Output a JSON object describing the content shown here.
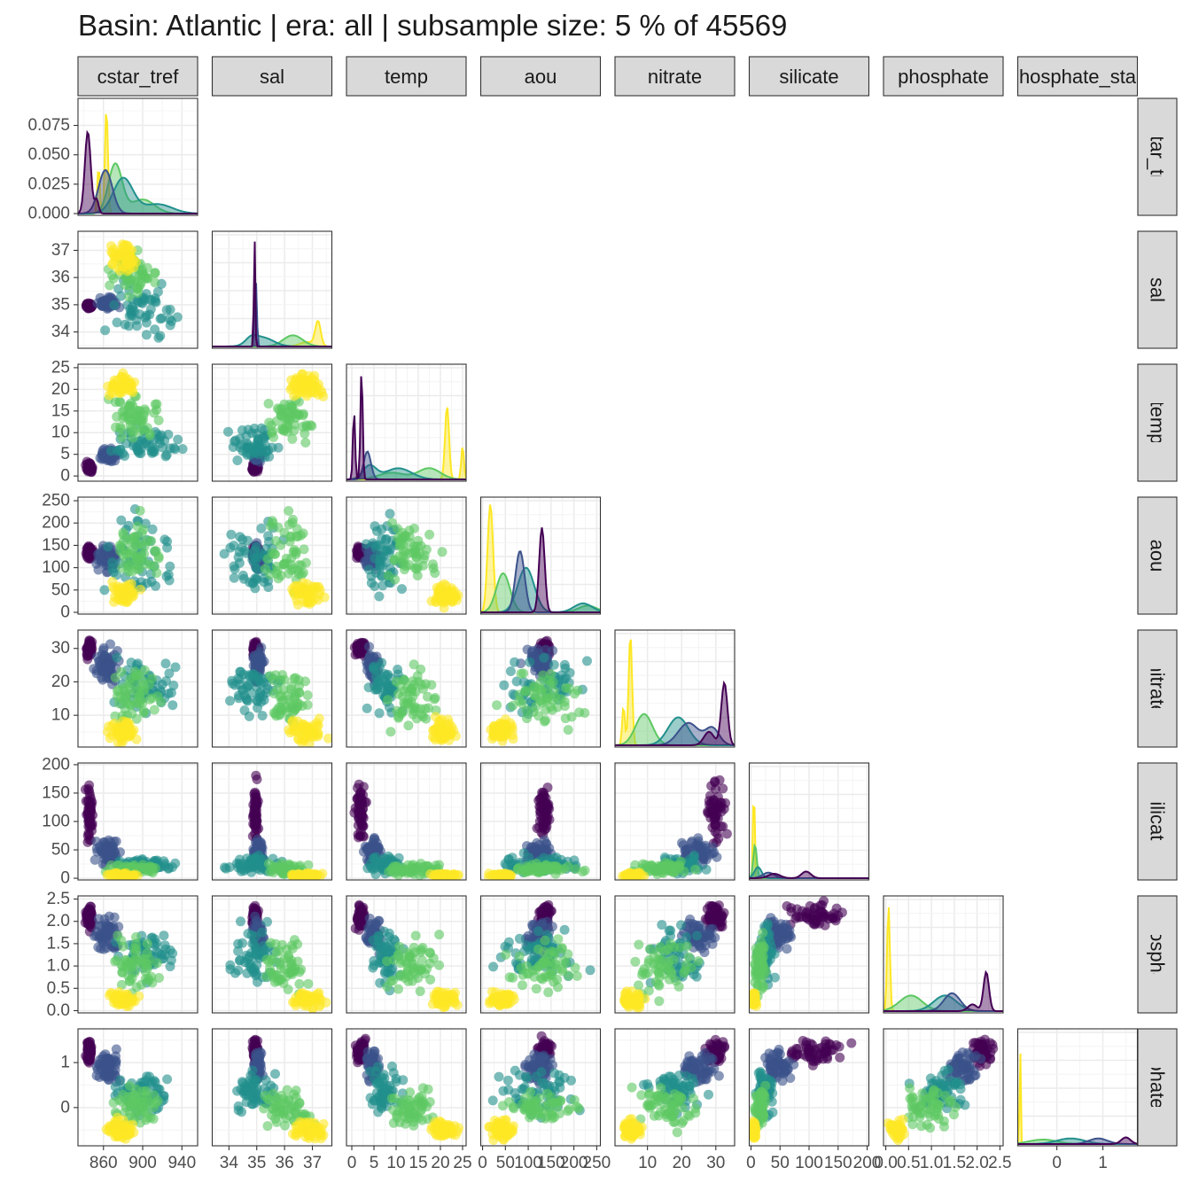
{
  "title": "Basin: Atlantic | era: all | subsample size: 5 % of 45569",
  "colors": {
    "panel_border": "#333333",
    "strip_fill": "#d9d9d9",
    "grid_major": "#ebebeb",
    "grid_minor": "#f4f4f4",
    "tick_text": "#4d4d4d",
    "palette": [
      "#440154",
      "#3b528b",
      "#21908c",
      "#5dc863",
      "#fde725"
    ]
  },
  "chart_data": {
    "type": "scatter",
    "layout": "pairs-lower-triangle",
    "variables": [
      {
        "name": "cstar_tref",
        "col_label": "cstar_tref",
        "row_label": "cstar_tref",
        "range": [
          834,
          956
        ],
        "x_ticks": [
          {
            "value": 860,
            "label": "860"
          },
          {
            "value": 900,
            "label": "900"
          },
          {
            "value": 940,
            "label": "940"
          }
        ],
        "y_ticks": [
          {
            "value": 0.0,
            "label": "0.000"
          },
          {
            "value": 0.025,
            "label": "0.025"
          },
          {
            "value": 0.05,
            "label": "0.050"
          },
          {
            "value": 0.075,
            "label": "0.075"
          }
        ],
        "density_max": 0.095
      },
      {
        "name": "sal",
        "col_label": "sal",
        "row_label": "sal",
        "range": [
          33.4,
          37.7
        ],
        "x_ticks": [
          {
            "value": 34,
            "label": "34"
          },
          {
            "value": 35,
            "label": "35"
          },
          {
            "value": 36,
            "label": "36"
          },
          {
            "value": 37,
            "label": "37"
          }
        ],
        "y_ticks": [
          {
            "value": 34,
            "label": "34"
          },
          {
            "value": 35,
            "label": "35"
          },
          {
            "value": 36,
            "label": "36"
          },
          {
            "value": 37,
            "label": "37"
          }
        ]
      },
      {
        "name": "temp",
        "col_label": "temp",
        "row_label": "temp",
        "range": [
          -1.2,
          25.8
        ],
        "x_ticks": [
          {
            "value": 0,
            "label": "0"
          },
          {
            "value": 5,
            "label": "5"
          },
          {
            "value": 10,
            "label": "10"
          },
          {
            "value": 15,
            "label": "15"
          },
          {
            "value": 20,
            "label": "20"
          },
          {
            "value": 25,
            "label": "25"
          }
        ],
        "y_ticks": [
          {
            "value": 0,
            "label": "0"
          },
          {
            "value": 5,
            "label": "5"
          },
          {
            "value": 10,
            "label": "10"
          },
          {
            "value": 15,
            "label": "15"
          },
          {
            "value": 20,
            "label": "20"
          },
          {
            "value": 25,
            "label": "25"
          }
        ]
      },
      {
        "name": "aou",
        "col_label": "aou",
        "row_label": "aou",
        "range": [
          -4,
          258
        ],
        "x_ticks": [
          {
            "value": 0,
            "label": "0"
          },
          {
            "value": 50,
            "label": "50"
          },
          {
            "value": 100,
            "label": "100"
          },
          {
            "value": 150,
            "label": "150"
          },
          {
            "value": 200,
            "label": "200"
          },
          {
            "value": 250,
            "label": "250"
          }
        ],
        "y_ticks": [
          {
            "value": 0,
            "label": "0"
          },
          {
            "value": 50,
            "label": "50"
          },
          {
            "value": 100,
            "label": "100"
          },
          {
            "value": 150,
            "label": "150"
          },
          {
            "value": 200,
            "label": "200"
          },
          {
            "value": 250,
            "label": "250"
          }
        ]
      },
      {
        "name": "nitrate",
        "col_label": "nitrate",
        "row_label": "nitrate",
        "range": [
          0.5,
          35.5
        ],
        "x_ticks": [
          {
            "value": 10,
            "label": "10"
          },
          {
            "value": 20,
            "label": "20"
          },
          {
            "value": 30,
            "label": "30"
          }
        ],
        "y_ticks": [
          {
            "value": 10,
            "label": "10"
          },
          {
            "value": 20,
            "label": "20"
          },
          {
            "value": 30,
            "label": "30"
          }
        ]
      },
      {
        "name": "silicate",
        "col_label": "silicate",
        "row_label": "silicate",
        "range": [
          -3,
          203
        ],
        "x_ticks": [
          {
            "value": 0,
            "label": "0"
          },
          {
            "value": 50,
            "label": "50"
          },
          {
            "value": 100,
            "label": "100"
          },
          {
            "value": 150,
            "label": "150"
          },
          {
            "value": 200,
            "label": "200"
          }
        ],
        "y_ticks": [
          {
            "value": 0,
            "label": "0"
          },
          {
            "value": 50,
            "label": "50"
          },
          {
            "value": 100,
            "label": "100"
          },
          {
            "value": 150,
            "label": "150"
          },
          {
            "value": 200,
            "label": "200"
          }
        ]
      },
      {
        "name": "phosphate",
        "col_label": "phosphate",
        "row_label": "phosphate",
        "range": [
          -0.05,
          2.57
        ],
        "x_ticks": [
          {
            "value": 0.0,
            "label": "0.0"
          },
          {
            "value": 0.5,
            "label": "0.5"
          },
          {
            "value": 1.0,
            "label": "1.0"
          },
          {
            "value": 1.5,
            "label": "1.5"
          },
          {
            "value": 2.0,
            "label": "2.0"
          },
          {
            "value": 2.5,
            "label": "2.5"
          }
        ],
        "y_ticks": [
          {
            "value": 0.0,
            "label": "0.0"
          },
          {
            "value": 0.5,
            "label": "0.5"
          },
          {
            "value": 1.0,
            "label": "1.0"
          },
          {
            "value": 1.5,
            "label": "1.5"
          },
          {
            "value": 2.0,
            "label": "2.0"
          },
          {
            "value": 2.5,
            "label": "2.5"
          }
        ]
      },
      {
        "name": "phosphate_star",
        "col_label": "hosphate_sta",
        "row_label": "hosphate_sta",
        "range": [
          -0.85,
          1.75
        ],
        "x_ticks": [
          {
            "value": 0,
            "label": "0"
          },
          {
            "value": 1,
            "label": "1"
          }
        ],
        "y_ticks": [
          {
            "value": 0,
            "label": "0"
          },
          {
            "value": 1,
            "label": "1"
          }
        ]
      }
    ],
    "groups": [
      {
        "color": "#440154",
        "cstar_tref": [
          841,
          850
        ],
        "sal": [
          34.8,
          35.1
        ],
        "temp": [
          0.5,
          3.5
        ],
        "aou": [
          115,
          155
        ],
        "nitrate": [
          26,
          34
        ],
        "silicate": [
          40,
          190
        ],
        "phosphate": [
          1.7,
          2.5
        ],
        "phosphate_star": [
          0.9,
          1.6
        ]
      },
      {
        "color": "#3b528b",
        "cstar_tref": [
          848,
          880
        ],
        "sal": [
          34.8,
          35.3
        ],
        "temp": [
          2.5,
          7.0
        ],
        "aou": [
          80,
          165
        ],
        "nitrate": [
          18,
          32
        ],
        "silicate": [
          15,
          80
        ],
        "phosphate": [
          1.2,
          2.2
        ],
        "phosphate_star": [
          0.4,
          1.4
        ]
      },
      {
        "color": "#21908c",
        "cstar_tref": [
          855,
          950
        ],
        "sal": [
          33.5,
          36.2
        ],
        "temp": [
          2.0,
          13.0
        ],
        "aou": [
          5,
          250
        ],
        "nitrate": [
          8,
          30
        ],
        "silicate": [
          4,
          45
        ],
        "phosphate": [
          0.4,
          2.1
        ],
        "phosphate_star": [
          -0.3,
          1.0
        ]
      },
      {
        "color": "#5dc863",
        "cstar_tref": [
          860,
          925
        ],
        "sal": [
          35.0,
          37.2
        ],
        "temp": [
          6.0,
          21.0
        ],
        "aou": [
          20,
          250
        ],
        "nitrate": [
          2,
          28
        ],
        "silicate": [
          2,
          30
        ],
        "phosphate": [
          0.1,
          1.9
        ],
        "phosphate_star": [
          -0.6,
          0.6
        ]
      },
      {
        "color": "#fde725",
        "cstar_tref": [
          858,
          900
        ],
        "sal": [
          36.0,
          37.6
        ],
        "temp": [
          17.0,
          25.0
        ],
        "aou": [
          5,
          80
        ],
        "nitrate": [
          1,
          10
        ],
        "silicate": [
          1,
          10
        ],
        "phosphate": [
          0.0,
          0.5
        ],
        "phosphate_star": [
          -0.8,
          -0.2
        ]
      }
    ],
    "densities": {
      "cstar_tref": [
        {
          "color": "#fde725",
          "peaks": [
            {
              "at": 863,
              "h": 0.09,
              "w": 1.5
            },
            {
              "at": 855,
              "h": 0.04,
              "w": 1.3
            }
          ]
        },
        {
          "color": "#5dc863",
          "peaks": [
            {
              "at": 872,
              "h": 0.042,
              "w": 7
            },
            {
              "at": 900,
              "h": 0.012,
              "w": 12
            }
          ]
        },
        {
          "color": "#21908c",
          "peaks": [
            {
              "at": 880,
              "h": 0.03,
              "w": 10
            },
            {
              "at": 915,
              "h": 0.008,
              "w": 15
            }
          ]
        },
        {
          "color": "#3b528b",
          "peaks": [
            {
              "at": 862,
              "h": 0.037,
              "w": 7
            }
          ]
        },
        {
          "color": "#440154",
          "peaks": [
            {
              "at": 844,
              "h": 0.07,
              "w": 3
            },
            {
              "at": 853,
              "h": 0.012,
              "w": 2
            }
          ]
        }
      ],
      "sal": [
        {
          "color": "#fde725",
          "peaks": [
            {
              "at": 37.2,
              "h": 0.22,
              "w": 0.1
            },
            {
              "at": 36.8,
              "h": 0.04,
              "w": 0.25
            }
          ]
        },
        {
          "color": "#5dc863",
          "peaks": [
            {
              "at": 36.3,
              "h": 0.1,
              "w": 0.35
            }
          ]
        },
        {
          "color": "#21908c",
          "peaks": [
            {
              "at": 35.2,
              "h": 0.08,
              "w": 0.4
            },
            {
              "at": 34.8,
              "h": 0.05,
              "w": 0.2
            }
          ]
        },
        {
          "color": "#3b528b",
          "peaks": [
            {
              "at": 34.96,
              "h": 0.62,
              "w": 0.04
            }
          ]
        },
        {
          "color": "#440154",
          "peaks": [
            {
              "at": 34.92,
              "h": 1.0,
              "w": 0.025
            }
          ]
        }
      ],
      "temp": [
        {
          "color": "#fde725",
          "peaks": [
            {
              "at": 21.5,
              "h": 0.66,
              "w": 0.45
            },
            {
              "at": 25.0,
              "h": 0.3,
              "w": 0.3
            }
          ]
        },
        {
          "color": "#5dc863",
          "peaks": [
            {
              "at": 17.5,
              "h": 0.1,
              "w": 2.5
            },
            {
              "at": 9,
              "h": 0.06,
              "w": 3
            }
          ]
        },
        {
          "color": "#21908c",
          "peaks": [
            {
              "at": 10.5,
              "h": 0.1,
              "w": 3.0
            },
            {
              "at": 4,
              "h": 0.12,
              "w": 1.5
            }
          ]
        },
        {
          "color": "#3b528b",
          "peaks": [
            {
              "at": 3.5,
              "h": 0.25,
              "w": 0.8
            }
          ]
        },
        {
          "color": "#440154",
          "peaks": [
            {
              "at": 2.2,
              "h": 1.0,
              "w": 0.25
            },
            {
              "at": 0.5,
              "h": 0.62,
              "w": 0.25
            }
          ]
        }
      ],
      "aou": [
        {
          "color": "#fde725",
          "peaks": [
            {
              "at": 17,
              "h": 0.97,
              "w": 6
            }
          ]
        },
        {
          "color": "#5dc863",
          "peaks": [
            {
              "at": 45,
              "h": 0.35,
              "w": 15
            },
            {
              "at": 230,
              "h": 0.06,
              "w": 20
            }
          ]
        },
        {
          "color": "#21908c",
          "peaks": [
            {
              "at": 95,
              "h": 0.4,
              "w": 18
            },
            {
              "at": 220,
              "h": 0.08,
              "w": 20
            }
          ]
        },
        {
          "color": "#3b528b",
          "peaks": [
            {
              "at": 82,
              "h": 0.55,
              "w": 10
            }
          ]
        },
        {
          "color": "#440154",
          "peaks": [
            {
              "at": 130,
              "h": 0.76,
              "w": 6
            }
          ]
        }
      ],
      "nitrate": [
        {
          "color": "#fde725",
          "peaks": [
            {
              "at": 5,
              "h": 1.0,
              "w": 0.5
            },
            {
              "at": 3,
              "h": 0.35,
              "w": 0.4
            }
          ]
        },
        {
          "color": "#5dc863",
          "peaks": [
            {
              "at": 9,
              "h": 0.28,
              "w": 2.5
            }
          ]
        },
        {
          "color": "#21908c",
          "peaks": [
            {
              "at": 19,
              "h": 0.25,
              "w": 3
            }
          ]
        },
        {
          "color": "#3b528b",
          "peaks": [
            {
              "at": 22,
              "h": 0.2,
              "w": 3
            },
            {
              "at": 29,
              "h": 0.15,
              "w": 2
            }
          ]
        },
        {
          "color": "#440154",
          "peaks": [
            {
              "at": 32.5,
              "h": 0.56,
              "w": 0.9
            },
            {
              "at": 28,
              "h": 0.12,
              "w": 1.5
            }
          ]
        }
      ],
      "silicate": [
        {
          "color": "#fde725",
          "peaks": [
            {
              "at": 5,
              "h": 1.0,
              "w": 1.2
            }
          ]
        },
        {
          "color": "#5dc863",
          "peaks": [
            {
              "at": 7,
              "h": 0.3,
              "w": 3
            }
          ]
        },
        {
          "color": "#21908c",
          "peaks": [
            {
              "at": 12,
              "h": 0.1,
              "w": 6
            }
          ]
        },
        {
          "color": "#3b528b",
          "peaks": [
            {
              "at": 30,
              "h": 0.05,
              "w": 10
            }
          ]
        },
        {
          "color": "#440154",
          "peaks": [
            {
              "at": 95,
              "h": 0.06,
              "w": 8
            },
            {
              "at": 40,
              "h": 0.04,
              "w": 10
            }
          ]
        }
      ],
      "phosphate": [
        {
          "color": "#fde725",
          "peaks": [
            {
              "at": 0.06,
              "h": 0.95,
              "w": 0.03
            }
          ]
        },
        {
          "color": "#5dc863",
          "peaks": [
            {
              "at": 0.55,
              "h": 0.14,
              "w": 0.25
            }
          ]
        },
        {
          "color": "#21908c",
          "peaks": [
            {
              "at": 1.3,
              "h": 0.14,
              "w": 0.25
            }
          ]
        },
        {
          "color": "#3b528b",
          "peaks": [
            {
              "at": 1.45,
              "h": 0.16,
              "w": 0.18
            }
          ]
        },
        {
          "color": "#440154",
          "peaks": [
            {
              "at": 2.2,
              "h": 0.35,
              "w": 0.06
            },
            {
              "at": 1.9,
              "h": 0.06,
              "w": 0.1
            }
          ]
        }
      ],
      "phosphate_star": [
        {
          "color": "#fde725",
          "peaks": [
            {
              "at": -0.8,
              "h": 1.0,
              "w": 0.012
            }
          ]
        },
        {
          "color": "#5dc863",
          "peaks": [
            {
              "at": -0.3,
              "h": 0.04,
              "w": 0.3
            }
          ]
        },
        {
          "color": "#21908c",
          "peaks": [
            {
              "at": 0.3,
              "h": 0.05,
              "w": 0.3
            }
          ]
        },
        {
          "color": "#3b528b",
          "peaks": [
            {
              "at": 0.9,
              "h": 0.05,
              "w": 0.2
            }
          ]
        },
        {
          "color": "#440154",
          "peaks": [
            {
              "at": 1.5,
              "h": 0.06,
              "w": 0.1
            }
          ]
        }
      ]
    }
  }
}
